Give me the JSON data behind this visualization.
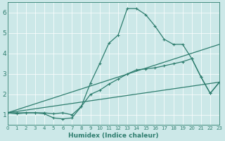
{
  "xlabel": "Humidex (Indice chaleur)",
  "bg_color": "#cce8e8",
  "grid_color": "#ffffff",
  "line_color": "#2e7d6e",
  "xlim": [
    0,
    23
  ],
  "ylim": [
    0.5,
    6.5
  ],
  "xtick_labels": [
    "0",
    "1",
    "2",
    "3",
    "4",
    "5",
    "6",
    "7",
    "8",
    "9",
    "10",
    "11",
    "12",
    "13",
    "14",
    "15",
    "16",
    "17",
    "18",
    "19",
    "20",
    "21",
    "22",
    "23"
  ],
  "ytick_vals": [
    1,
    2,
    3,
    4,
    5,
    6
  ],
  "line1_x": [
    0,
    1,
    2,
    3,
    4,
    5,
    6,
    7,
    8,
    9,
    10,
    11,
    12,
    13,
    14,
    15,
    16,
    17,
    18,
    19,
    20,
    21,
    22,
    23
  ],
  "line1_y": [
    1.1,
    1.1,
    1.1,
    1.1,
    1.05,
    0.85,
    0.8,
    0.85,
    1.4,
    2.55,
    3.5,
    4.5,
    4.9,
    6.2,
    6.2,
    5.9,
    5.35,
    4.7,
    4.45,
    4.45,
    3.75,
    2.85,
    2.05,
    2.6
  ],
  "line2_x": [
    0,
    1,
    2,
    3,
    4,
    5,
    6,
    7,
    8,
    9,
    10,
    11,
    12,
    13,
    14,
    15,
    16,
    17,
    18,
    19,
    20,
    21,
    22,
    23
  ],
  "line2_y": [
    1.1,
    1.05,
    1.1,
    1.1,
    1.1,
    1.05,
    1.1,
    1.0,
    1.4,
    2.0,
    2.2,
    2.5,
    2.75,
    3.0,
    3.2,
    3.25,
    3.3,
    3.4,
    3.5,
    3.6,
    3.75,
    2.85,
    2.05,
    2.6
  ],
  "line3_x": [
    0,
    23
  ],
  "line3_y": [
    1.1,
    4.45
  ],
  "line4_x": [
    0,
    23
  ],
  "line4_y": [
    1.1,
    2.6
  ]
}
